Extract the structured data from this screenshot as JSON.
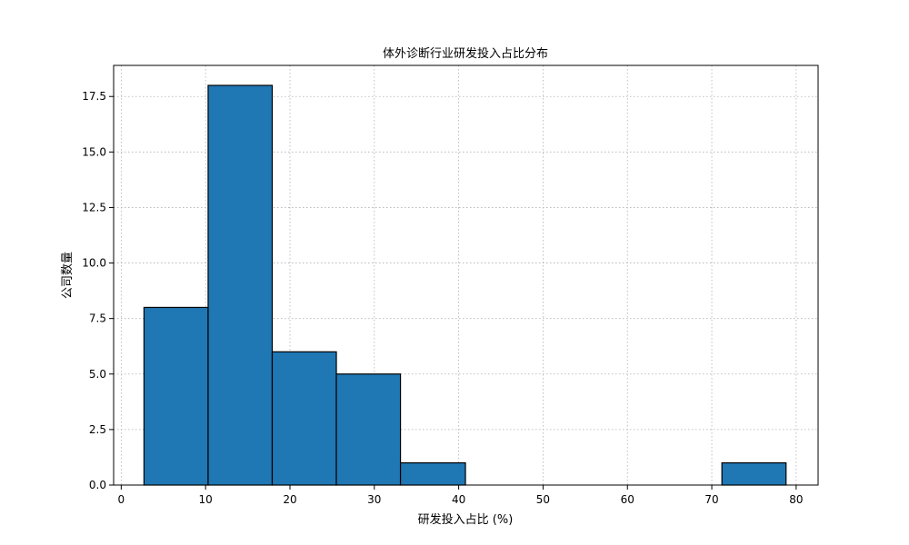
{
  "chart_data": {
    "type": "bar",
    "title": "体外诊断行业研发投入占比分布",
    "xlabel": "研发投入占比 (%)",
    "ylabel": "公司数量",
    "bins": [
      {
        "start": 2.7,
        "end": 10.3,
        "count": 8
      },
      {
        "start": 10.3,
        "end": 17.9,
        "count": 18
      },
      {
        "start": 17.9,
        "end": 25.5,
        "count": 6
      },
      {
        "start": 25.5,
        "end": 33.1,
        "count": 5
      },
      {
        "start": 33.1,
        "end": 40.8,
        "count": 1
      },
      {
        "start": 40.8,
        "end": 48.4,
        "count": 0
      },
      {
        "start": 48.4,
        "end": 56.0,
        "count": 0
      },
      {
        "start": 56.0,
        "end": 63.6,
        "count": 0
      },
      {
        "start": 63.6,
        "end": 71.2,
        "count": 0
      },
      {
        "start": 71.2,
        "end": 78.8,
        "count": 1
      }
    ],
    "xlim": [
      -0.9,
      82.6
    ],
    "ylim": [
      0,
      18.9
    ],
    "xticks": [
      0,
      10,
      20,
      30,
      40,
      50,
      60,
      70,
      80
    ],
    "xtick_labels": [
      "0",
      "10",
      "20",
      "30",
      "40",
      "50",
      "60",
      "70",
      "80"
    ],
    "yticks": [
      0,
      2.5,
      5,
      7.5,
      10,
      12.5,
      15,
      17.5
    ],
    "ytick_labels": [
      "0.0",
      "2.5",
      "5.0",
      "7.5",
      "10.0",
      "12.5",
      "15.0",
      "17.5"
    ],
    "grid": true,
    "colors": {
      "bar": "#1f77b4",
      "edge": "#000000",
      "grid": "#b0b0b0"
    }
  }
}
